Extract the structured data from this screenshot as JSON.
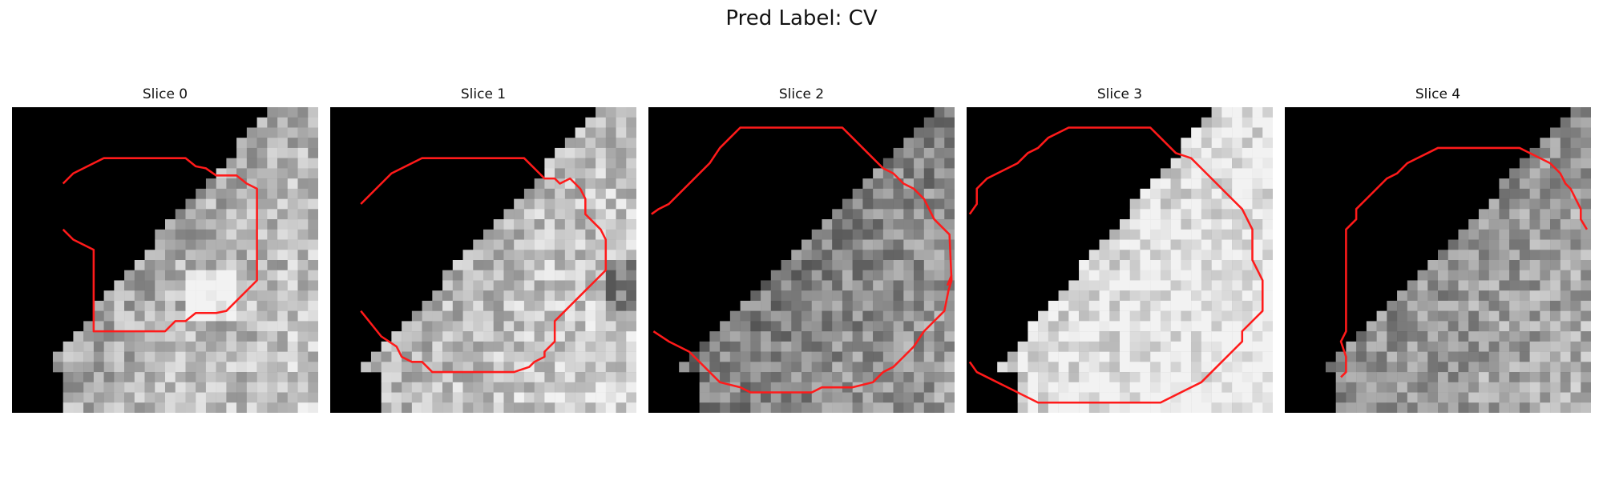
{
  "figure": {
    "title": "Pred Label: CV"
  },
  "slices": [
    {
      "label": "Slice 0",
      "seed": 11,
      "tissue": "boundary",
      "base": 0.55
    },
    {
      "label": "Slice 1",
      "seed": 23,
      "tissue": "boundary",
      "base": 0.6
    },
    {
      "label": "Slice 2",
      "seed": 37,
      "tissue": "boundary",
      "base": 0.38
    },
    {
      "label": "Slice 3",
      "seed": 41,
      "tissue": "boundary",
      "base": 0.75
    },
    {
      "label": "Slice 4",
      "seed": 53,
      "tissue": "boundary",
      "base": 0.45
    }
  ],
  "colors": {
    "contour": "#ff1a1a",
    "background": "#000000"
  },
  "grid_size": 30
}
